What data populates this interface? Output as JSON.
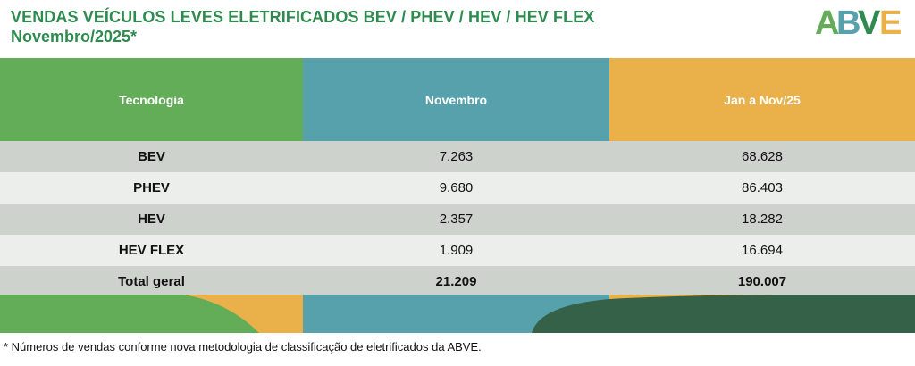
{
  "title": {
    "line1": "VENDAS VEÍCULOS LEVES ELETRIFICADOS BEV / PHEV / HEV / HEV FLEX",
    "line2": "Novembro/2025*"
  },
  "logo": {
    "text": "ABVE"
  },
  "table": {
    "headers": [
      "Tecnologia",
      "Novembro",
      "Jan a Nov/25"
    ],
    "rows": [
      {
        "tecnologia": "BEV",
        "novembro": "7.263",
        "acumulado": "68.628"
      },
      {
        "tecnologia": "PHEV",
        "novembro": "9.680",
        "acumulado": "86.403"
      },
      {
        "tecnologia": "HEV",
        "novembro": "2.357",
        "acumulado": "18.282"
      },
      {
        "tecnologia": "HEV FLEX",
        "novembro": "1.909",
        "acumulado": "16.694"
      }
    ],
    "total": {
      "label": "Total geral",
      "novembro": "21.209",
      "acumulado": "190.007"
    }
  },
  "footnote": "* Números de vendas conforme nova metodologia de classificação de eletrificados da ABVE.",
  "colors": {
    "title_green": "#2e8a4e",
    "header_green": "#63ad58",
    "header_teal": "#56a1ac",
    "header_orange": "#eab14a",
    "row_dark": "#cdd2cc",
    "row_light": "#eceeeb",
    "dark_green": "#356148"
  }
}
